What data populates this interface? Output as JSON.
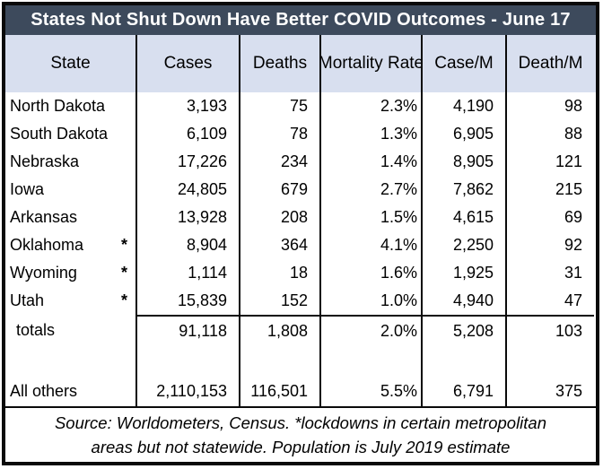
{
  "title": "States Not Shut Down Have Better COVID Outcomes - June 17",
  "footer": {
    "line1": "Source: Worldometers, Census.  *lockdowns in certain metropolitan",
    "line2": "areas but not statewide.  Population is July 2019 estimate"
  },
  "colors": {
    "title_bg": "#3d4a5c",
    "title_text": "#ffffff",
    "header_bg": "#d8dfef",
    "grid_border": "#0a0a0a",
    "row_bg": "#ffffff"
  },
  "chart_data": {
    "type": "table",
    "title": "States Not Shut Down Have Better COVID Outcomes - June 17",
    "columns": [
      "State",
      "Cases",
      "Deaths",
      "Mortality Rate",
      "Case/M",
      "Death/M"
    ],
    "rows": [
      {
        "state": "North Dakota",
        "asterisk": "",
        "cases": "3,193",
        "deaths": "75",
        "mortality_rate": "2.3%",
        "case_per_m": "4,190",
        "death_per_m": "98"
      },
      {
        "state": "South Dakota",
        "asterisk": "",
        "cases": "6,109",
        "deaths": "78",
        "mortality_rate": "1.3%",
        "case_per_m": "6,905",
        "death_per_m": "88"
      },
      {
        "state": "Nebraska",
        "asterisk": "",
        "cases": "17,226",
        "deaths": "234",
        "mortality_rate": "1.4%",
        "case_per_m": "8,905",
        "death_per_m": "121"
      },
      {
        "state": "Iowa",
        "asterisk": "",
        "cases": "24,805",
        "deaths": "679",
        "mortality_rate": "2.7%",
        "case_per_m": "7,862",
        "death_per_m": "215"
      },
      {
        "state": "Arkansas",
        "asterisk": "",
        "cases": "13,928",
        "deaths": "208",
        "mortality_rate": "1.5%",
        "case_per_m": "4,615",
        "death_per_m": "69"
      },
      {
        "state": "Oklahoma",
        "asterisk": "*",
        "cases": "8,904",
        "deaths": "364",
        "mortality_rate": "4.1%",
        "case_per_m": "2,250",
        "death_per_m": "92"
      },
      {
        "state": "Wyoming",
        "asterisk": "*",
        "cases": "1,114",
        "deaths": "18",
        "mortality_rate": "1.6%",
        "case_per_m": "1,925",
        "death_per_m": "31"
      },
      {
        "state": "Utah",
        "asterisk": "*",
        "cases": "15,839",
        "deaths": "152",
        "mortality_rate": "1.0%",
        "case_per_m": "4,940",
        "death_per_m": "47"
      },
      {
        "state": "totals",
        "asterisk": "",
        "cases": "91,118",
        "deaths": "1,808",
        "mortality_rate": "2.0%",
        "case_per_m": "5,208",
        "death_per_m": "103"
      },
      {
        "state": "All others",
        "asterisk": "",
        "cases": "2,110,153",
        "deaths": "116,501",
        "mortality_rate": "5.5%",
        "case_per_m": "6,791",
        "death_per_m": "375"
      }
    ],
    "footnote": "Source: Worldometers, Census.  *lockdowns in certain metropolitan areas but not statewide.  Population is July 2019 estimate"
  }
}
